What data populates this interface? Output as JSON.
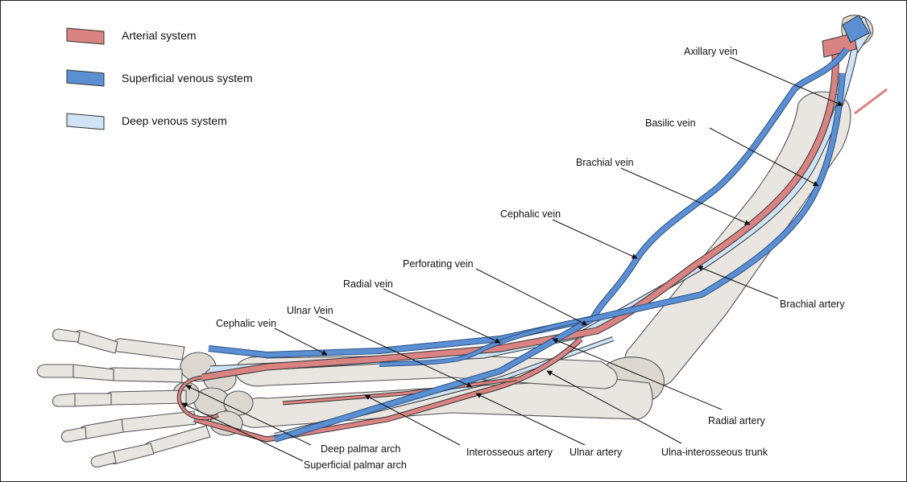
{
  "colors": {
    "arterial": "#d98383",
    "superficial_venous": "#5b8fd3",
    "deep_venous": "#cfe3f5",
    "bone": "#e9e6e1",
    "outline": "#555555"
  },
  "legend": [
    {
      "label": "Arterial system",
      "color": "#d98383"
    },
    {
      "label": "Superficial venous system",
      "color": "#5b8fd3"
    },
    {
      "label": "Deep venous system",
      "color": "#cfe3f5"
    }
  ],
  "labels": {
    "axillary_vein": "Axillary vein",
    "basilic_vein": "Basilic vein",
    "brachial_vein": "Brachial  vein",
    "cephalic_vein_upper": "Cephalic vein",
    "perforating_vein": "Perforating vein",
    "radial_vein": "Radial vein",
    "ulnar_vein": "Ulnar Vein",
    "cephalic_vein_lower": "Cephalic vein",
    "brachial_artery": "Brachial artery",
    "radial_artery": "Radial artery",
    "ulna_interosseous_trunk": "Ulna-interosseous trunk",
    "ulnar_artery": "Ulnar artery",
    "interosseous_artery": "Interosseous  artery",
    "deep_palmar_arch": "Deep palmar arch",
    "superficial_palmar_arch": "Superficial palmar arch"
  }
}
